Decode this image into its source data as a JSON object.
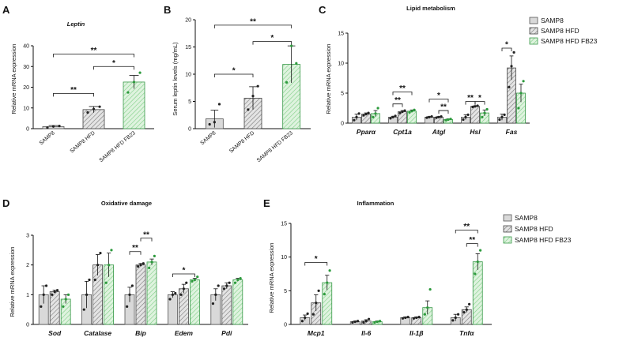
{
  "colors": {
    "series0": "#d9d9d9",
    "series1": "#bdbdbd",
    "series2": "#b7e4b9",
    "stroke0": "#555555",
    "stroke1": "#444444",
    "stroke2": "#3a9a4a",
    "dot0": "#222222",
    "dot2": "#2c9a3c"
  },
  "legend": [
    "SAMP8",
    "SAMP8 HFD",
    "SAMP8 HFD FB23"
  ],
  "chart_data": [
    {
      "panel": "A",
      "type": "bar",
      "title": "Leptin",
      "title_italic": true,
      "ylabel": "Relative mRNA expression",
      "xlabel": "",
      "ylim": [
        0,
        40
      ],
      "yticks": [
        "0",
        "10",
        "20",
        "30",
        "40"
      ],
      "categories": [
        "SAMP8",
        "SAMP8 HFD",
        "SAMP8 HFD FB23"
      ],
      "values": [
        1,
        9.2,
        22.5
      ],
      "errors": [
        0.5,
        1.5,
        3.2
      ],
      "points": [
        [
          0.5,
          1.1,
          1.3
        ],
        [
          7.8,
          9.5,
          10.6
        ],
        [
          17.5,
          22.5,
          27
        ]
      ],
      "significance": [
        {
          "from": 0,
          "to": 1,
          "label": "**",
          "y": 17
        },
        {
          "from": 1,
          "to": 2,
          "label": "*",
          "y": 30
        },
        {
          "from": 0,
          "to": 2,
          "label": "**",
          "y": 36
        }
      ]
    },
    {
      "panel": "B",
      "type": "bar",
      "title": "",
      "ylabel": "Serum leptin levels (mg/mL)",
      "xlabel": "",
      "ylim": [
        0,
        20
      ],
      "yticks": [
        "0",
        "5",
        "10",
        "15",
        "20"
      ],
      "categories": [
        "SAMP8",
        "SAMP8 HFD",
        "SAMP8 HFD FB23"
      ],
      "values": [
        1.8,
        5.6,
        11.8
      ],
      "errors": [
        1.6,
        2.1,
        3.4
      ],
      "points": [
        [
          0.8,
          1.2,
          4.5
        ],
        [
          3.5,
          6,
          7.8
        ],
        [
          8.5,
          15.2,
          12
        ]
      ],
      "significance": [
        {
          "from": 0,
          "to": 1,
          "label": "*",
          "y": 10
        },
        {
          "from": 1,
          "to": 2,
          "label": "*",
          "y": 16
        },
        {
          "from": 0,
          "to": 2,
          "label": "**",
          "y": 19
        }
      ]
    },
    {
      "panel": "C",
      "type": "bar",
      "title": "Lipid metabolism",
      "ylabel": "Relative mRNA expression",
      "xlabel": "",
      "ylim": [
        0,
        15
      ],
      "yticks": [
        "0",
        "5",
        "10",
        "15"
      ],
      "categories": [
        "Pparα",
        "Cpt1a",
        "Atgl",
        "Hsl",
        "Fas"
      ],
      "series": [
        {
          "name": "SAMP8",
          "values": [
            1,
            1,
            1,
            1,
            1
          ],
          "errors": [
            0.5,
            0.15,
            0.1,
            0.4,
            0.5
          ],
          "points": [
            [
              0.5,
              1,
              1.6
            ],
            [
              0.8,
              1,
              1.2
            ],
            [
              0.9,
              1,
              1.1
            ],
            [
              0.6,
              1,
              1.4
            ],
            [
              0.6,
              1,
              1.4
            ]
          ]
        },
        {
          "name": "SAMP8 HFD",
          "values": [
            1.5,
            1.9,
            1,
            2.8,
            9.2
          ],
          "errors": [
            0.2,
            0.2,
            0.1,
            0.1,
            2
          ],
          "points": [
            [
              1.3,
              1.5,
              1.7
            ],
            [
              1.7,
              1.9,
              2.1
            ],
            [
              0.9,
              1,
              1.1
            ],
            [
              2.7,
              2.8,
              2.9
            ],
            [
              6,
              9.5,
              11.8
            ]
          ]
        },
        {
          "name": "SAMP8 HFD FB23",
          "values": [
            1.6,
            2,
            0.6,
            1.7,
            5
          ],
          "errors": [
            0.5,
            0.2,
            0.1,
            0.5,
            1.5
          ],
          "points": [
            [
              1,
              1.6,
              2.5
            ],
            [
              1.8,
              2,
              2.2
            ],
            [
              0.5,
              0.6,
              0.7
            ],
            [
              1,
              1.7,
              2.3
            ],
            [
              2.5,
              5,
              7
            ]
          ]
        }
      ],
      "significance": [
        {
          "group": 1,
          "from": 0,
          "to": 1,
          "label": "**",
          "y": 3.2
        },
        {
          "group": 1,
          "from": 0,
          "to": 2,
          "label": "**",
          "y": 5.2
        },
        {
          "group": 2,
          "from": 1,
          "to": 2,
          "label": "**",
          "y": 2.1
        },
        {
          "group": 2,
          "from": 0,
          "to": 2,
          "label": "*",
          "y": 4
        },
        {
          "group": 3,
          "from": 0,
          "to": 1,
          "label": "**",
          "y": 3.6
        },
        {
          "group": 3,
          "from": 1,
          "to": 2,
          "label": "*",
          "y": 3.6
        },
        {
          "group": 4,
          "from": 0,
          "to": 1,
          "label": "*",
          "y": 12.5
        }
      ]
    },
    {
      "panel": "D",
      "type": "bar",
      "title": "Oxidative damage",
      "ylabel": "Relative mRNA expression",
      "xlabel": "",
      "ylim": [
        0,
        3
      ],
      "yticks": [
        "0",
        "1",
        "2",
        "3"
      ],
      "categories": [
        "Sod",
        "Catalase",
        "Bip",
        "Edem",
        "Pdi"
      ],
      "series": [
        {
          "name": "SAMP8",
          "values": [
            1,
            1,
            1,
            1,
            1
          ],
          "errors": [
            0.3,
            0.45,
            0.25,
            0.1,
            0.2
          ],
          "points": [
            [
              0.6,
              1,
              1.3
            ],
            [
              0.5,
              1,
              1.5
            ],
            [
              0.6,
              1,
              1.3
            ],
            [
              0.85,
              1,
              1.05
            ],
            [
              0.7,
              1,
              1.3
            ]
          ]
        },
        {
          "name": "SAMP8 HFD",
          "values": [
            1.1,
            2,
            2,
            1.2,
            1.3
          ],
          "errors": [
            0.05,
            0.35,
            0.05,
            0.15,
            0.1
          ],
          "points": [
            [
              1,
              1.1,
              1.15
            ],
            [
              1.5,
              2,
              2.4
            ],
            [
              1.95,
              2,
              2.05
            ],
            [
              1,
              1.2,
              1.4
            ],
            [
              1.2,
              1.3,
              1.4
            ]
          ]
        },
        {
          "name": "SAMP8 HFD FB23",
          "values": [
            0.85,
            2,
            2.1,
            1.5,
            1.5
          ],
          "errors": [
            0.15,
            0.4,
            0.1,
            0.05,
            0.05
          ],
          "points": [
            [
              0.6,
              0.85,
              1
            ],
            [
              1.4,
              2,
              2.5
            ],
            [
              1.9,
              2.1,
              2.3
            ],
            [
              1.45,
              1.5,
              1.6
            ],
            [
              1.4,
              1.5,
              1.55
            ]
          ]
        }
      ],
      "significance": [
        {
          "group": 2,
          "from": 0,
          "to": 1,
          "label": "**",
          "y": 2.45
        },
        {
          "group": 2,
          "from": 1,
          "to": 2,
          "label": "**",
          "y": 2.9
        },
        {
          "group": 3,
          "from": 0,
          "to": 2,
          "label": "*",
          "y": 1.7
        }
      ]
    },
    {
      "panel": "E",
      "type": "bar",
      "title": "Inflammation",
      "ylabel": "Relative mRNA expression",
      "xlabel": "",
      "ylim": [
        0,
        15
      ],
      "yticks": [
        "0",
        "5",
        "10",
        "15"
      ],
      "categories": [
        "Mcp1",
        "Il-6",
        "Il-1β",
        "Tnfα"
      ],
      "series": [
        {
          "name": "SAMP8",
          "values": [
            1,
            0.4,
            1,
            1
          ],
          "errors": [
            0.4,
            0.1,
            0.1,
            0.5
          ],
          "points": [
            [
              0.5,
              1,
              1.6
            ],
            [
              0.3,
              0.4,
              0.5
            ],
            [
              0.9,
              1,
              1.1
            ],
            [
              0.6,
              1,
              1.5
            ]
          ]
        },
        {
          "name": "SAMP8 HFD",
          "values": [
            3.2,
            0.5,
            1,
            2.2
          ],
          "errors": [
            1.2,
            0.2,
            0.1,
            0.4
          ],
          "points": [
            [
              1.5,
              3.2,
              5
            ],
            [
              0.3,
              0.5,
              0.8
            ],
            [
              0.9,
              1,
              1.1
            ],
            [
              1.8,
              2.2,
              3
            ]
          ]
        },
        {
          "name": "SAMP8 HFD FB23",
          "values": [
            6.2,
            0.4,
            2.5,
            9.3
          ],
          "errors": [
            1.1,
            0.1,
            1,
            1.2
          ],
          "points": [
            [
              4.5,
              6.2,
              8
            ],
            [
              0.3,
              0.4,
              0.5
            ],
            [
              1.5,
              2.5,
              5.2
            ],
            [
              7.5,
              9.3,
              11
            ]
          ]
        }
      ],
      "significance": [
        {
          "group": 0,
          "from": 0,
          "to": 2,
          "label": "*",
          "y": 9.2
        },
        {
          "group": 3,
          "from": 1,
          "to": 2,
          "label": "**",
          "y": 12
        },
        {
          "group": 3,
          "from": 0,
          "to": 2,
          "label": "**",
          "y": 14
        }
      ]
    }
  ]
}
